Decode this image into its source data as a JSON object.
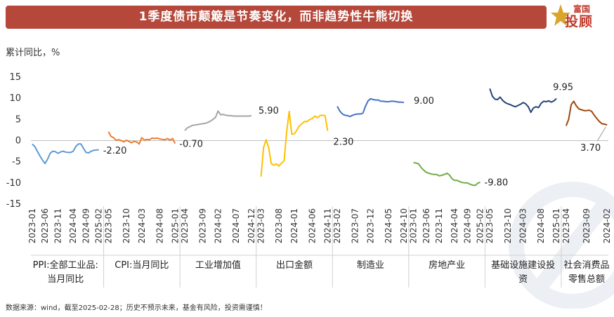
{
  "header": {
    "title": "1季度债市颠簸是节奏变化，而非趋势性牛熊切换",
    "logo_top": "富国",
    "logo_big": "投顾"
  },
  "unit_label": "累计同比，%",
  "source_note": "数据来源：wind，截至2025-02-28；历史不预示未来，基金有风险，投资需谨慎！",
  "colors": {
    "banner": "#b5483a",
    "ppi": "#5b9bd5",
    "cpi": "#ed7d31",
    "industrial": "#a5a5a5",
    "exports": "#ffc000",
    "manufacturing": "#4472c4",
    "real_estate": "#70ad47",
    "infrastructure": "#264478",
    "retail": "#9e480e"
  },
  "chart_data": {
    "type": "line",
    "ylim": [
      -15,
      15
    ],
    "yticks": [
      15,
      10,
      5,
      0,
      -5,
      -10,
      -15
    ],
    "xlabel": "",
    "ylabel": "累计同比，%",
    "grid": false,
    "groups": [
      {
        "name": "PPI:全部工业品:当月同比",
        "label_lines": [
          "PPI:全部工业品:",
          "当月同比"
        ],
        "color": "#5b9bd5",
        "x_ticks": [
          "2023-01",
          "2023-06",
          "2023-11",
          "2024-04",
          "2024-09",
          "2025-02"
        ],
        "values": [
          -0.8,
          -1.4,
          -2.5,
          -3.6,
          -4.6,
          -5.4,
          -4.4,
          -3.0,
          -2.5,
          -2.6,
          -3.0,
          -2.7,
          -2.5,
          -2.7,
          -2.8,
          -2.8,
          -2.5,
          -1.4,
          -0.8,
          -0.8,
          -1.8,
          -2.8,
          -2.9,
          -2.5,
          -2.3,
          -2.2,
          -2.2
        ],
        "end_label": "-2.20"
      },
      {
        "name": "CPI:当月同比",
        "label_lines": [
          "CPI:当月同比"
        ],
        "color": "#ed7d31",
        "x_ticks": [
          "2023-05",
          "2023-10",
          "2024-03",
          "2024-08",
          "2025-01"
        ],
        "values": [
          2.1,
          1.0,
          0.7,
          0.1,
          0.2,
          0.0,
          -0.3,
          0.1,
          -0.2,
          -0.5,
          -0.2,
          -0.3,
          -0.8,
          0.7,
          0.1,
          0.3,
          0.2,
          0.6,
          0.5,
          0.6,
          0.4,
          0.3,
          0.2,
          0.5,
          0.1,
          0.5,
          -0.7
        ],
        "end_label": "-0.70"
      },
      {
        "name": "工业增加值",
        "label_lines": [
          "工业增加值"
        ],
        "color": "#a5a5a5",
        "x_ticks": [
          "2023-04",
          "2023-09",
          "2024-02",
          "2024-07",
          "2024-12"
        ],
        "values": [
          2.4,
          3.0,
          3.3,
          3.6,
          3.7,
          3.8,
          3.9,
          4.0,
          4.1,
          4.3,
          4.6,
          5.0,
          5.5,
          7.0,
          6.1,
          6.2,
          6.0,
          5.9,
          5.9,
          5.8,
          5.8,
          5.8,
          5.8,
          5.8,
          5.8,
          5.8,
          5.9
        ],
        "end_label": "5.90"
      },
      {
        "name": "出口金额",
        "label_lines": [
          "出口金额"
        ],
        "color": "#ffc000",
        "x_ticks": [
          "2023-03",
          "2023-08",
          "2024-01",
          "2024-06",
          "2024-11"
        ],
        "values": [
          -8.5,
          -1.6,
          0.2,
          -1.7,
          -5.4,
          -5.8,
          -5.5,
          -6.0,
          -5.3,
          -4.8,
          2.0,
          6.9,
          1.5,
          1.6,
          2.5,
          3.5,
          4.0,
          4.5,
          4.5,
          5.0,
          5.2,
          5.8,
          5.4,
          5.9,
          6.0,
          5.9,
          2.3
        ],
        "end_label": "2.30"
      },
      {
        "name": "制造业",
        "label_lines": [
          "制造业"
        ],
        "color": "#4472c4",
        "x_ticks": [
          "2023-02",
          "2023-07",
          "2023-12",
          "2024-05",
          "2024-10"
        ],
        "values": [
          8.1,
          7.0,
          6.3,
          6.0,
          5.9,
          5.7,
          6.0,
          6.2,
          6.3,
          6.3,
          6.5,
          8.1,
          9.4,
          9.9,
          9.7,
          9.6,
          9.6,
          9.3,
          9.3,
          9.2,
          9.2,
          9.3,
          9.3,
          9.2,
          9.1,
          9.1,
          9.0
        ],
        "end_label": "9.00"
      },
      {
        "name": "房地产业",
        "label_lines": [
          "房地产业"
        ],
        "color": "#70ad47",
        "x_ticks": [
          "2023-01",
          "2023-06",
          "2023-11",
          "2024-04",
          "2024-09",
          "2025-02"
        ],
        "values": [
          -5.2,
          -5.3,
          -5.5,
          -6.4,
          -7.0,
          -7.5,
          -7.7,
          -7.9,
          -8.0,
          -8.0,
          -8.3,
          -8.2,
          -8.0,
          -7.7,
          -8.1,
          -9.0,
          -9.4,
          -9.4,
          -9.7,
          -9.9,
          -10.0,
          -10.0,
          -10.3,
          -10.5,
          -10.6,
          -10.1,
          -9.8
        ],
        "end_label": "-9.80"
      },
      {
        "name": "基础设施建设投资",
        "label_lines": [
          "基础设施建设投",
          "资"
        ],
        "color": "#264478",
        "x_ticks": [
          "2023-05",
          "2023-10",
          "2024-03",
          "2024-08",
          "2025-01"
        ],
        "values": [
          12.3,
          10.5,
          9.8,
          9.7,
          10.3,
          9.5,
          9.0,
          8.7,
          8.5,
          8.2,
          8.0,
          8.3,
          8.6,
          9.0,
          8.7,
          8.0,
          6.7,
          7.7,
          8.0,
          7.8,
          8.8,
          9.3,
          9.2,
          9.4,
          9.1,
          9.4,
          9.95
        ],
        "end_label": "9.95"
      },
      {
        "name": "社会消费品零售总额",
        "label_lines": [
          "社会消费品",
          "零售总额"
        ],
        "color": "#9e480e",
        "x_ticks": [
          "2023-04",
          "2023-09",
          "2024-02"
        ],
        "values": [
          3.5,
          5.0,
          8.5,
          9.3,
          8.2,
          7.5,
          7.3,
          7.1,
          7.1,
          7.2,
          6.9,
          6.0,
          5.2,
          4.5,
          4.0,
          3.9,
          3.7
        ],
        "end_label": "3.70"
      }
    ]
  }
}
